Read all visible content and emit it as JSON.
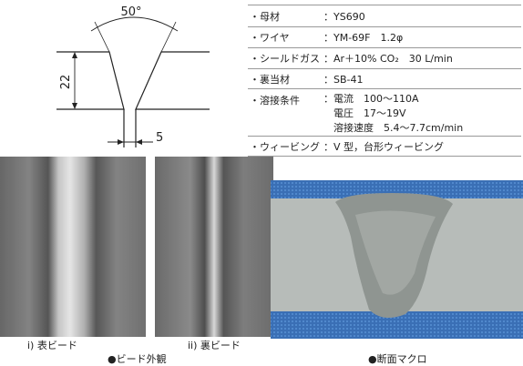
{
  "diagram": {
    "angle": "50°",
    "depth": "22",
    "gap": "5"
  },
  "table": {
    "rows": [
      {
        "label": "・母材",
        "values": [
          "：YS690"
        ]
      },
      {
        "label": "・ワイヤ",
        "values": [
          "：YM-69F　1.2φ"
        ]
      },
      {
        "label": "・シールドガス",
        "values": [
          "：Ar＋10% CO₂　30 L/min"
        ]
      },
      {
        "label": "・裏当材",
        "values": [
          "：SB-41"
        ]
      },
      {
        "label": "・溶接条件",
        "values": [
          "：電流　100～110A",
          "　電圧　17～19V",
          "　溶接速度　5.4～7.7cm/min"
        ]
      },
      {
        "label": "・ウィービング",
        "values": [
          "：V 型，台形ウィービング"
        ]
      }
    ]
  },
  "photos": {
    "front": "i) 表ビード",
    "back": "ii) 裏ビード",
    "appearance": "●ビード外観",
    "macro": "●断面マクロ"
  }
}
